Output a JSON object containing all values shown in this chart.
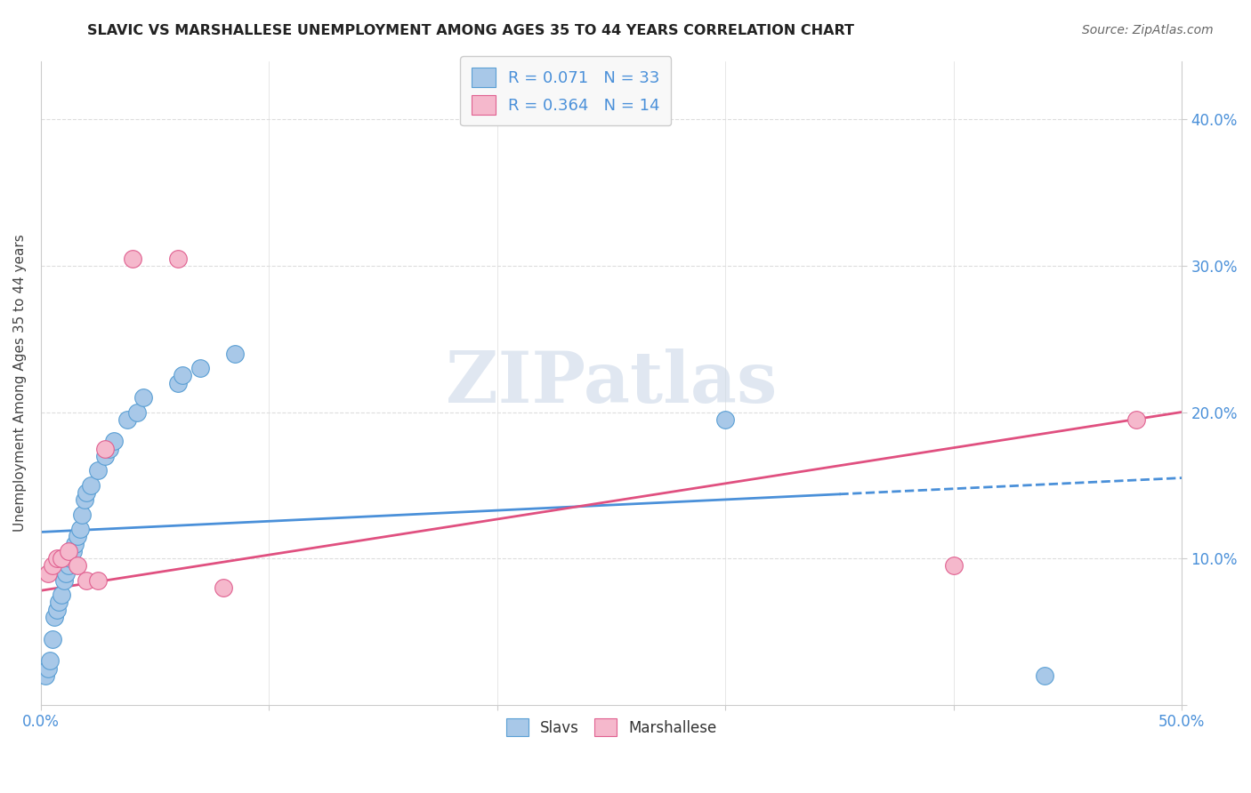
{
  "title": "SLAVIC VS MARSHALLESE UNEMPLOYMENT AMONG AGES 35 TO 44 YEARS CORRELATION CHART",
  "source": "Source: ZipAtlas.com",
  "ylabel": "Unemployment Among Ages 35 to 44 years",
  "xlim": [
    0.0,
    0.5
  ],
  "ylim": [
    0.0,
    0.44
  ],
  "xtick_positions": [
    0.0,
    0.1,
    0.2,
    0.3,
    0.4,
    0.5
  ],
  "xtick_labels_sparse": [
    "0.0%",
    "",
    "",
    "",
    "",
    "50.0%"
  ],
  "ytick_positions": [
    0.0,
    0.1,
    0.2,
    0.3,
    0.4
  ],
  "ytick_labels_right": [
    "",
    "10.0%",
    "20.0%",
    "30.0%",
    "40.0%"
  ],
  "slavs_color": "#a8c8e8",
  "marshallese_color": "#f5b8cc",
  "slavs_edge_color": "#5a9fd4",
  "marshallese_edge_color": "#e06090",
  "slavs_line_color": "#4a90d9",
  "marshallese_line_color": "#e05080",
  "watermark_color": "#ccd8e8",
  "slavs_R": 0.071,
  "slavs_N": 33,
  "marshallese_R": 0.364,
  "marshallese_N": 14,
  "slavs_x": [
    0.002,
    0.003,
    0.004,
    0.005,
    0.006,
    0.007,
    0.008,
    0.009,
    0.01,
    0.011,
    0.012,
    0.013,
    0.014,
    0.015,
    0.016,
    0.017,
    0.018,
    0.019,
    0.02,
    0.022,
    0.025,
    0.028,
    0.03,
    0.032,
    0.038,
    0.042,
    0.045,
    0.06,
    0.062,
    0.07,
    0.085,
    0.3,
    0.44
  ],
  "slavs_y": [
    0.02,
    0.025,
    0.03,
    0.045,
    0.06,
    0.065,
    0.07,
    0.075,
    0.085,
    0.09,
    0.095,
    0.1,
    0.105,
    0.11,
    0.115,
    0.12,
    0.13,
    0.14,
    0.145,
    0.15,
    0.16,
    0.17,
    0.175,
    0.18,
    0.195,
    0.2,
    0.21,
    0.22,
    0.225,
    0.23,
    0.24,
    0.195,
    0.02
  ],
  "marshallese_x": [
    0.003,
    0.005,
    0.007,
    0.009,
    0.012,
    0.016,
    0.02,
    0.025,
    0.028,
    0.04,
    0.06,
    0.08,
    0.4,
    0.48
  ],
  "marshallese_y": [
    0.09,
    0.095,
    0.1,
    0.1,
    0.105,
    0.095,
    0.085,
    0.085,
    0.175,
    0.305,
    0.305,
    0.08,
    0.095,
    0.195
  ],
  "slavs_trend_x": [
    0.0,
    0.5
  ],
  "slavs_trend_y": [
    0.118,
    0.155
  ],
  "marshallese_trend_x": [
    0.0,
    0.5
  ],
  "marshallese_trend_y": [
    0.078,
    0.2
  ],
  "grid_color": "#dddddd",
  "background_color": "#ffffff",
  "marker_size": 200
}
